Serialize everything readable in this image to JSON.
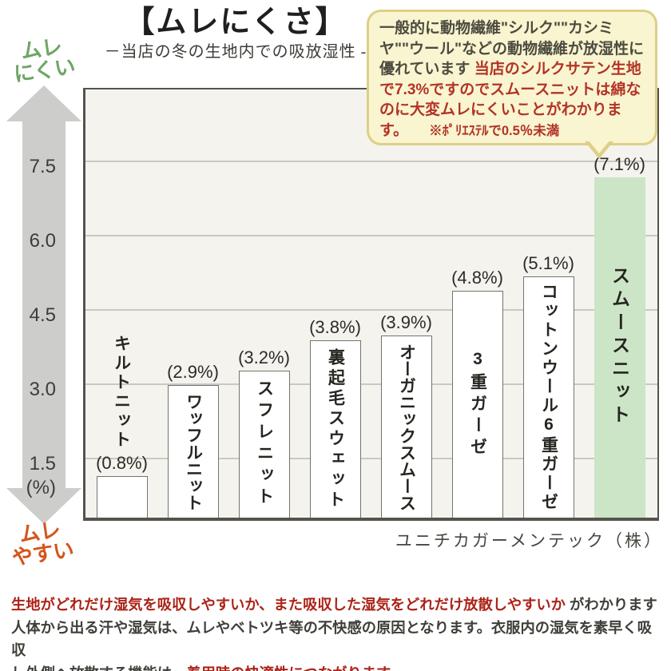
{
  "page": {
    "title": "【ムレにくさ】",
    "subtitle": "－当店の冬の生地内での吸放湿性 -"
  },
  "axis": {
    "top_label": {
      "line1": "ムレ",
      "line2": "にくい"
    },
    "bottom_label": {
      "line1": "ムレ",
      "line2": "やすい"
    },
    "unit": "(%)"
  },
  "bubble": {
    "text_dark": "一般的に動物繊維\"シルク\"\"カシミヤ\"\"ウール\"などの動物繊維が放湿性に優れています ",
    "text_red": "当店のシルクサテン生地で7.3%ですのでスムースニットは綿なのに大変ムレにくいことがわかります。",
    "note": "※ﾎﾟﾘｴｽﾃﾙで0.5％未満"
  },
  "chart_data": {
    "type": "bar",
    "title": "ムレにくさ",
    "subtitle": "当店の冬の生地内での吸放湿性",
    "categories": [
      "キルトニット",
      "ワッフルニット",
      "スフレニット",
      "裏起毛スウェット",
      "オーガニックスムース",
      "3重ガーゼ",
      "コットンウール6重ガーゼ",
      "スムースニット"
    ],
    "values": [
      0.8,
      2.9,
      3.2,
      3.8,
      3.9,
      4.8,
      5.1,
      7.1
    ],
    "value_labels": [
      "(0.8%)",
      "(2.9%)",
      "(3.2%)",
      "(3.8%)",
      "(3.9%)",
      "(4.8%)",
      "(5.1%)",
      "(7.1%)"
    ],
    "unit": "%",
    "ylabel": "(%)",
    "yticks": [
      7.5,
      6.0,
      4.5,
      3.0,
      1.5
    ],
    "ylim": [
      0,
      8.8
    ],
    "grid": true,
    "legend": "none",
    "bar_color": "#ffffff",
    "highlight_index": 7,
    "highlight_color": "#cbe5c6",
    "axis_direction_note_top": "ムレにくい",
    "axis_direction_note_bottom": "ムレやすい",
    "source": "ユニチカガーメンテック（株）"
  },
  "footer": {
    "line1_red": "生地がどれだけ湿気を吸収しやすいか、また吸収した湿気をどれだけ放散しやすいか",
    "line1_dark": " がわかります",
    "line2": "人体から出る汗や湿気は、ムレやベトツキ等の不快感の原因となります。衣服内の湿気を素早く吸収",
    "line3_dark": "し外側へ放散する機能は、",
    "line3_red": "着用時の快適性につながります。"
  },
  "colors": {
    "accent_green_text": "#6fa565",
    "accent_orange_text": "#d4551b",
    "red_text": "#b23327",
    "bubble_bg": "#f9f5d0",
    "bubble_border": "#ddcf86",
    "plot_bg": "#f4f3ee",
    "arrow_gray": "#cdcdcb"
  }
}
